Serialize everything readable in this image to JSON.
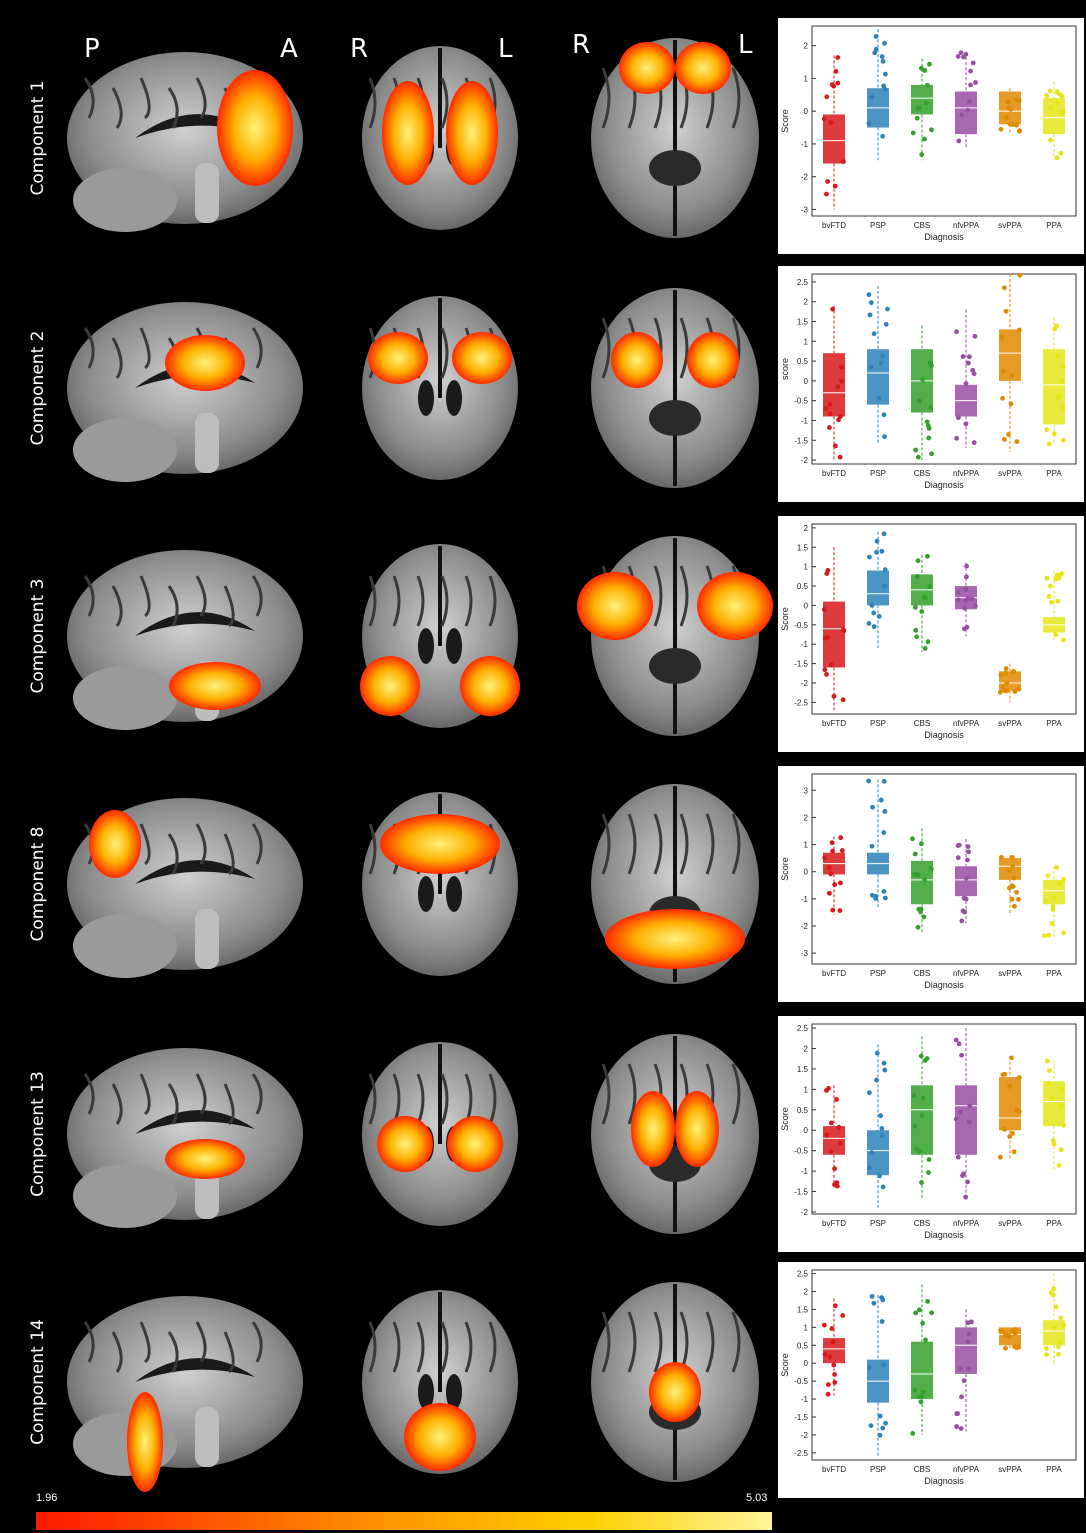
{
  "orientation_labels": {
    "p": "P",
    "a": "A",
    "r1": "R",
    "l1": "L",
    "r2": "R",
    "l2": "L"
  },
  "colorbar": {
    "min": "1.96",
    "max": "5.03"
  },
  "groups": [
    "bvFTD",
    "PSP",
    "CBS",
    "nfvPPA",
    "svPPA",
    "PPA"
  ],
  "group_colors": [
    "#d7191c",
    "#2b83ba",
    "#33a02c",
    "#984ea3",
    "#e08a00",
    "#e6e61a"
  ],
  "chart_data": [
    {
      "type": "box",
      "component": "Component 1",
      "xlabel": "Diagnosis",
      "ylabel": "Score",
      "ylim": [
        -3.2,
        2.6
      ],
      "yticks": [
        -3,
        -2,
        -1,
        0,
        1,
        2
      ],
      "boxes": [
        {
          "q1": -1.6,
          "median": -0.9,
          "q3": -0.1,
          "min": -3.0,
          "max": 1.7
        },
        {
          "q1": -0.5,
          "median": 0.1,
          "q3": 0.7,
          "min": -1.5,
          "max": 2.5
        },
        {
          "q1": -0.1,
          "median": 0.4,
          "q3": 0.8,
          "min": -1.5,
          "max": 1.6
        },
        {
          "q1": -0.7,
          "median": 0.1,
          "q3": 0.6,
          "min": -1.1,
          "max": 1.8
        },
        {
          "q1": -0.4,
          "median": 0.0,
          "q3": 0.6,
          "min": -0.7,
          "max": 0.7
        },
        {
          "q1": -0.7,
          "median": -0.2,
          "q3": 0.4,
          "min": -1.5,
          "max": 0.9
        }
      ]
    },
    {
      "type": "box",
      "component": "Component 2",
      "xlabel": "Diagnosis",
      "ylabel": "score",
      "ylim": [
        -2.1,
        2.7
      ],
      "yticks": [
        -2,
        -1.5,
        -1,
        -0.5,
        0,
        0.5,
        1,
        1.5,
        2,
        2.5
      ],
      "boxes": [
        {
          "q1": -0.9,
          "median": -0.3,
          "q3": 0.7,
          "min": -2.0,
          "max": 1.9
        },
        {
          "q1": -0.6,
          "median": 0.2,
          "q3": 0.8,
          "min": -1.6,
          "max": 2.4
        },
        {
          "q1": -0.8,
          "median": 0.0,
          "q3": 0.8,
          "min": -2.0,
          "max": 1.4
        },
        {
          "q1": -0.9,
          "median": -0.5,
          "q3": -0.1,
          "min": -1.7,
          "max": 1.8
        },
        {
          "q1": 0.0,
          "median": 0.7,
          "q3": 1.3,
          "min": -1.8,
          "max": 2.7
        },
        {
          "q1": -1.1,
          "median": -0.1,
          "q3": 0.8,
          "min": -1.6,
          "max": 1.6
        }
      ]
    },
    {
      "type": "box",
      "component": "Component 3",
      "xlabel": "Diagnosis",
      "ylabel": "Score",
      "ylim": [
        -2.8,
        2.1
      ],
      "yticks": [
        -2.5,
        -2,
        -1.5,
        -1,
        -0.5,
        0,
        0.5,
        1,
        1.5,
        2
      ],
      "boxes": [
        {
          "q1": -1.6,
          "median": -0.6,
          "q3": 0.1,
          "min": -2.7,
          "max": 1.5
        },
        {
          "q1": 0.0,
          "median": 0.3,
          "q3": 0.9,
          "min": -1.1,
          "max": 1.9
        },
        {
          "q1": 0.0,
          "median": 0.4,
          "q3": 0.8,
          "min": -1.2,
          "max": 1.3
        },
        {
          "q1": -0.1,
          "median": 0.2,
          "q3": 0.5,
          "min": -0.8,
          "max": 1.1
        },
        {
          "q1": -2.2,
          "median": -2.0,
          "q3": -1.7,
          "min": -2.5,
          "max": -1.5
        },
        {
          "q1": -0.7,
          "median": -0.5,
          "q3": -0.3,
          "min": -0.9,
          "max": 0.9
        }
      ]
    },
    {
      "type": "box",
      "component": "Component 8",
      "xlabel": "Diagnosis",
      "ylabel": "Score",
      "ylim": [
        -3.4,
        3.6
      ],
      "yticks": [
        -3,
        -2,
        -1,
        0,
        1,
        2,
        3
      ],
      "boxes": [
        {
          "q1": -0.1,
          "median": 0.3,
          "q3": 0.7,
          "min": -1.6,
          "max": 1.3
        },
        {
          "q1": -0.1,
          "median": 0.3,
          "q3": 0.7,
          "min": -1.3,
          "max": 3.4
        },
        {
          "q1": -1.2,
          "median": -0.3,
          "q3": 0.4,
          "min": -2.3,
          "max": 1.6
        },
        {
          "q1": -0.9,
          "median": -0.3,
          "q3": 0.2,
          "min": -1.9,
          "max": 1.2
        },
        {
          "q1": -0.3,
          "median": 0.2,
          "q3": 0.5,
          "min": -1.6,
          "max": 0.6
        },
        {
          "q1": -1.2,
          "median": -0.7,
          "q3": -0.3,
          "min": -2.4,
          "max": 0.2
        }
      ]
    },
    {
      "type": "box",
      "component": "Component 13",
      "xlabel": "Diagnosis",
      "ylabel": "Score",
      "ylim": [
        -2.05,
        2.6
      ],
      "yticks": [
        -2,
        -1.5,
        -1,
        -0.5,
        0,
        0.5,
        1,
        1.5,
        2,
        2.5
      ],
      "boxes": [
        {
          "q1": -0.6,
          "median": -0.2,
          "q3": 0.1,
          "min": -1.4,
          "max": 1.1
        },
        {
          "q1": -1.1,
          "median": -0.5,
          "q3": 0.0,
          "min": -1.9,
          "max": 2.1
        },
        {
          "q1": -0.6,
          "median": 0.5,
          "q3": 1.1,
          "min": -1.7,
          "max": 2.3
        },
        {
          "q1": -0.6,
          "median": 0.6,
          "q3": 1.1,
          "min": -1.7,
          "max": 2.5
        },
        {
          "q1": 0.0,
          "median": 0.3,
          "q3": 1.3,
          "min": -0.7,
          "max": 1.8
        },
        {
          "q1": 0.1,
          "median": 0.7,
          "q3": 1.2,
          "min": -1.0,
          "max": 1.7
        }
      ]
    },
    {
      "type": "box",
      "component": "Component 14",
      "xlabel": "Diagnosis",
      "ylabel": "Score",
      "ylim": [
        -2.7,
        2.6
      ],
      "yticks": [
        -2.5,
        -2,
        -1.5,
        -1,
        -0.5,
        0,
        0.5,
        1,
        1.5,
        2,
        2.5
      ],
      "boxes": [
        {
          "q1": 0.0,
          "median": 0.4,
          "q3": 0.7,
          "min": -0.9,
          "max": 1.8
        },
        {
          "q1": -1.1,
          "median": -0.5,
          "q3": 0.1,
          "min": -2.6,
          "max": 1.9
        },
        {
          "q1": -1.0,
          "median": -0.3,
          "q3": 0.6,
          "min": -2.0,
          "max": 2.2
        },
        {
          "q1": -0.3,
          "median": 0.5,
          "q3": 1.0,
          "min": -1.9,
          "max": 1.5
        },
        {
          "q1": 0.5,
          "median": 0.8,
          "q3": 1.0,
          "min": 0.4,
          "max": 1.0
        },
        {
          "q1": 0.5,
          "median": 0.9,
          "q3": 1.2,
          "min": 0.0,
          "max": 2.5
        }
      ]
    }
  ]
}
